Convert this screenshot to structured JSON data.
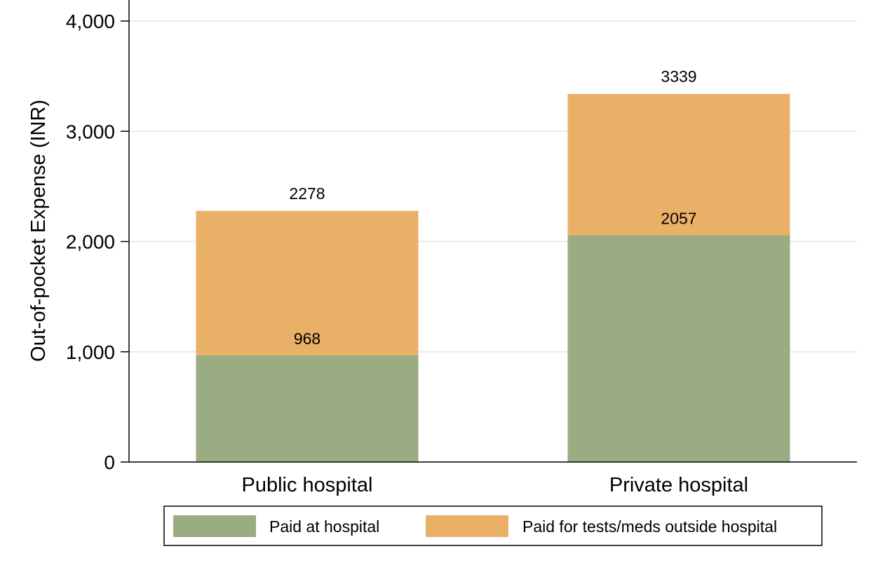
{
  "chart_data": {
    "type": "bar",
    "stacked": true,
    "title": "",
    "xlabel": "",
    "ylabel": "Out-of-pocket Expense (INR)",
    "ylim": [
      0,
      4000
    ],
    "yticks": [
      0,
      1000,
      2000,
      3000,
      4000
    ],
    "ytick_labels": [
      "0",
      "1,000",
      "2,000",
      "3,000",
      "4,000"
    ],
    "grid": true,
    "categories": [
      "Public hospital",
      "Private hospital"
    ],
    "series": [
      {
        "name": "Paid at hospital",
        "values": [
          968,
          2057
        ],
        "color": "#9bab82"
      },
      {
        "name": "Paid for tests/meds outside hospital",
        "values": [
          1310,
          1282
        ],
        "color": "#ebb068"
      }
    ],
    "data_labels": {
      "segment": [
        "968",
        "2057"
      ],
      "total": [
        "2278",
        "3339"
      ]
    },
    "legend_position": "bottom"
  }
}
